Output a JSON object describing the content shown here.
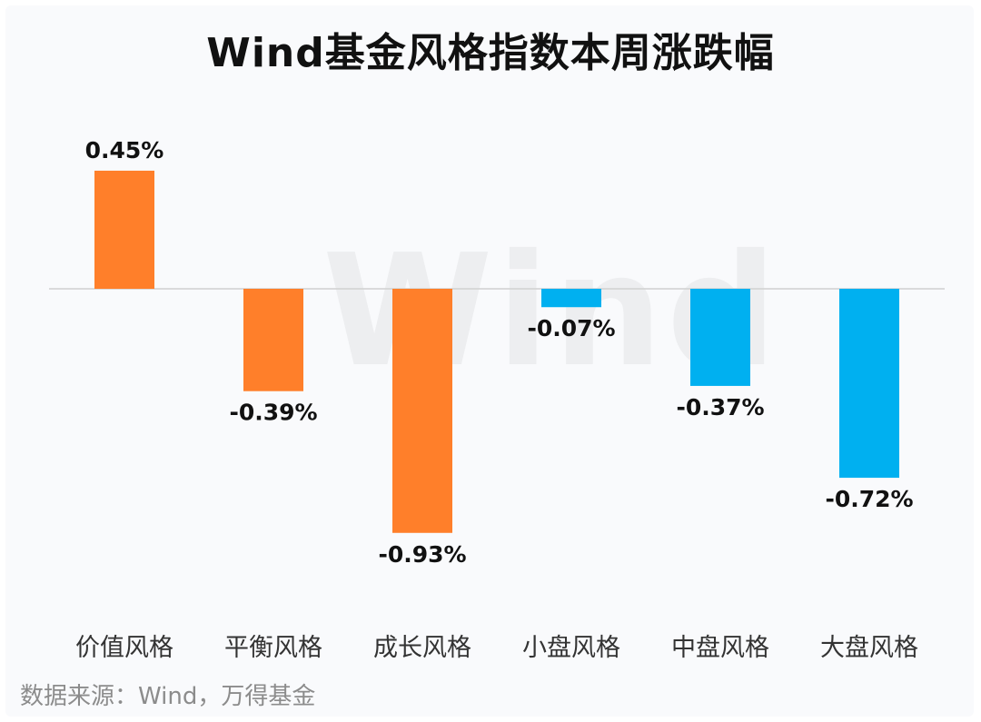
{
  "title": "Wind基金风格指数本周涨跌幅",
  "watermark": "Wind",
  "source": "数据来源：Wind，万得基金",
  "colors": {
    "style_bars": "#FF7F2A",
    "size_bars": "#00B0F0",
    "zero_line": "#d0d0d0",
    "label": "#111111",
    "category": "#333333"
  },
  "chart_data": {
    "type": "bar",
    "categories": [
      "价值风格",
      "平衡风格",
      "成长风格",
      "小盘风格",
      "中盘风格",
      "大盘风格"
    ],
    "values": [
      0.45,
      -0.39,
      -0.93,
      -0.07,
      -0.37,
      -0.72
    ],
    "value_labels": [
      "0.45%",
      "-0.39%",
      "-0.93%",
      "-0.07%",
      "-0.37%",
      "-0.72%"
    ],
    "bar_colors": [
      "#FF7F2A",
      "#FF7F2A",
      "#FF7F2A",
      "#00B0F0",
      "#00B0F0",
      "#00B0F0"
    ],
    "unit": "%",
    "ylim": [
      -0.93,
      0.45
    ],
    "grid": false,
    "legend": "none"
  }
}
